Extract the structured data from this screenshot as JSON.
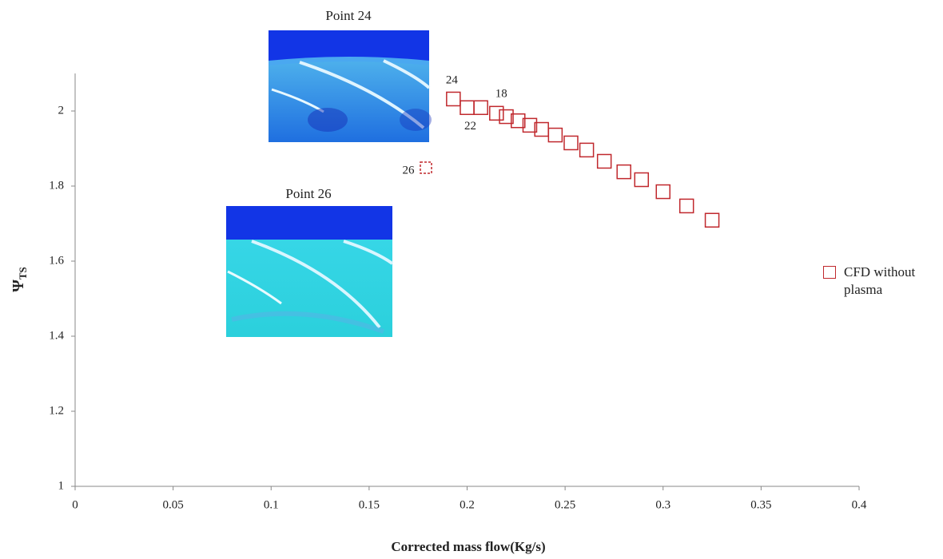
{
  "chart_data": {
    "type": "scatter",
    "xlabel": "Corrected mass flow(Kg/s)",
    "ylabel": {
      "main": "Ψ",
      "sub": "TS"
    },
    "xlim": [
      0,
      0.4
    ],
    "xticks": [
      0,
      0.05,
      0.1,
      0.15,
      0.2,
      0.25,
      0.3,
      0.35,
      0.4
    ],
    "ylim": [
      1,
      2.1
    ],
    "yticks": [
      1,
      1.2,
      1.4,
      1.6,
      1.8,
      2
    ],
    "series": [
      {
        "name": "CFD without plasma",
        "color": "#c0282d",
        "marker": "square",
        "dashed_points": [
          0
        ],
        "x": [
          0.179,
          0.193,
          0.2,
          0.207,
          0.215,
          0.22,
          0.226,
          0.232,
          0.238,
          0.245,
          0.253,
          0.261,
          0.27,
          0.28,
          0.289,
          0.3,
          0.312,
          0.325
        ],
        "values": [
          1.849,
          2.032,
          2.009,
          2.009,
          1.994,
          1.985,
          1.974,
          1.962,
          1.951,
          1.936,
          1.915,
          1.896,
          1.866,
          1.838,
          1.817,
          1.785,
          1.747,
          1.709
        ]
      }
    ],
    "annotations": [
      "26",
      "24",
      "22",
      "18"
    ],
    "insets": [
      "Point 24",
      "Point 26"
    ],
    "legend": "right"
  }
}
